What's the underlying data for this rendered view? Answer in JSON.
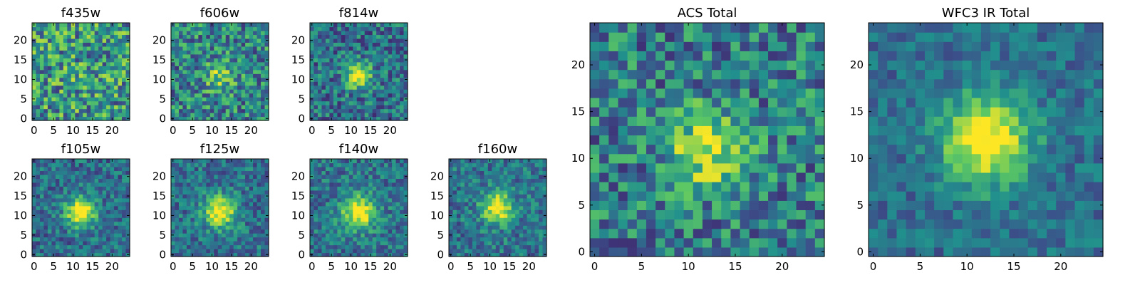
{
  "chart_data": [
    {
      "type": "heatmap",
      "title": "f435w",
      "x_ticks": [
        0,
        5,
        10,
        15,
        20
      ],
      "y_ticks": [
        0,
        5,
        10,
        15,
        20
      ],
      "xlim": [
        -0.5,
        24.5
      ],
      "ylim": [
        -0.5,
        24.5
      ],
      "grid_size": 25,
      "center": [
        12,
        11
      ],
      "peak_amplitude": 0.05,
      "peak_sigma": 2.5,
      "noise_level": 0.35,
      "seed": 11
    },
    {
      "type": "heatmap",
      "title": "f606w",
      "x_ticks": [
        0,
        5,
        10,
        15,
        20
      ],
      "y_ticks": [
        0,
        5,
        10,
        15,
        20
      ],
      "xlim": [
        -0.5,
        24.5
      ],
      "ylim": [
        -0.5,
        24.5
      ],
      "grid_size": 25,
      "center": [
        12,
        11
      ],
      "peak_amplitude": 0.35,
      "peak_sigma": 2.5,
      "noise_level": 0.3,
      "seed": 23
    },
    {
      "type": "heatmap",
      "title": "f814w",
      "x_ticks": [
        0,
        5,
        10,
        15,
        20
      ],
      "y_ticks": [
        0,
        5,
        10,
        15,
        20
      ],
      "xlim": [
        -0.5,
        24.5
      ],
      "ylim": [
        -0.5,
        24.5
      ],
      "grid_size": 25,
      "center": [
        12,
        11
      ],
      "peak_amplitude": 0.7,
      "peak_sigma": 2.2,
      "noise_level": 0.25,
      "seed": 37
    },
    {
      "type": "heatmap",
      "title": "f105w",
      "x_ticks": [
        0,
        5,
        10,
        15,
        20
      ],
      "y_ticks": [
        0,
        5,
        10,
        15,
        20
      ],
      "xlim": [
        -0.5,
        24.5
      ],
      "ylim": [
        -0.5,
        24.5
      ],
      "grid_size": 25,
      "center": [
        12,
        11
      ],
      "peak_amplitude": 0.75,
      "peak_sigma": 2.6,
      "noise_level": 0.2,
      "seed": 41
    },
    {
      "type": "heatmap",
      "title": "f125w",
      "x_ticks": [
        0,
        5,
        10,
        15,
        20
      ],
      "y_ticks": [
        0,
        5,
        10,
        15,
        20
      ],
      "xlim": [
        -0.5,
        24.5
      ],
      "ylim": [
        -0.5,
        24.5
      ],
      "grid_size": 25,
      "center": [
        12,
        11
      ],
      "peak_amplitude": 0.7,
      "peak_sigma": 2.8,
      "noise_level": 0.2,
      "seed": 53
    },
    {
      "type": "heatmap",
      "title": "f140w",
      "x_ticks": [
        0,
        5,
        10,
        15,
        20
      ],
      "y_ticks": [
        0,
        5,
        10,
        15,
        20
      ],
      "xlim": [
        -0.5,
        24.5
      ],
      "ylim": [
        -0.5,
        24.5
      ],
      "grid_size": 25,
      "center": [
        12,
        11
      ],
      "peak_amplitude": 0.65,
      "peak_sigma": 3.0,
      "noise_level": 0.2,
      "seed": 67
    },
    {
      "type": "heatmap",
      "title": "f160w",
      "x_ticks": [
        0,
        5,
        10,
        15,
        20
      ],
      "y_ticks": [
        0,
        5,
        10,
        15,
        20
      ],
      "xlim": [
        -0.5,
        24.5
      ],
      "ylim": [
        -0.5,
        24.5
      ],
      "grid_size": 25,
      "center": [
        12,
        12
      ],
      "peak_amplitude": 0.65,
      "peak_sigma": 2.8,
      "noise_level": 0.2,
      "seed": 79
    },
    {
      "type": "heatmap",
      "title": "ACS Total",
      "x_ticks": [
        0,
        5,
        10,
        15,
        20
      ],
      "y_ticks": [
        0,
        5,
        10,
        15,
        20
      ],
      "xlim": [
        -0.5,
        24.5
      ],
      "ylim": [
        -0.5,
        24.5
      ],
      "grid_size": 25,
      "center": [
        12,
        11
      ],
      "peak_amplitude": 0.5,
      "peak_sigma": 2.8,
      "noise_level": 0.28,
      "seed": 97
    },
    {
      "type": "heatmap",
      "title": "WFC3 IR Total",
      "x_ticks": [
        0,
        5,
        10,
        15,
        20
      ],
      "y_ticks": [
        0,
        5,
        10,
        15,
        20
      ],
      "xlim": [
        -0.5,
        24.5
      ],
      "ylim": [
        -0.5,
        24.5
      ],
      "grid_size": 25,
      "center": [
        12,
        12
      ],
      "peak_amplitude": 0.75,
      "peak_sigma": 3.2,
      "noise_level": 0.15,
      "seed": 103
    }
  ],
  "colormap": [
    "#440154",
    "#3b528b",
    "#21908d",
    "#5dc863",
    "#fde725"
  ]
}
